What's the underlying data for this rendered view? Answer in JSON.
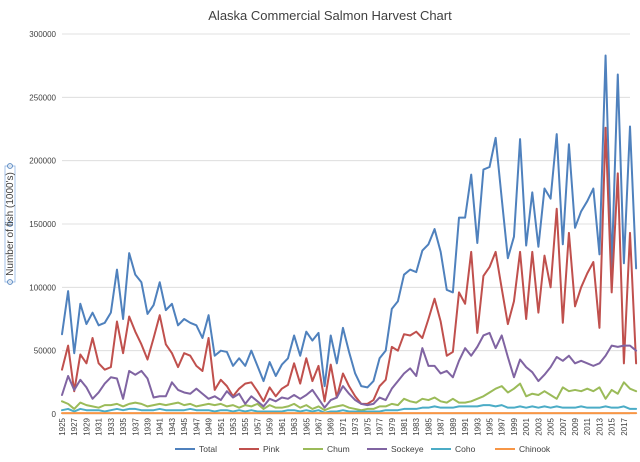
{
  "chart_data": {
    "type": "line",
    "title": "Alaska Commercial Salmon Harvest Chart",
    "xlabel": "",
    "ylabel": "Number of fish (1000's)",
    "ylim": [
      0,
      300000
    ],
    "yticks": [
      "0",
      "50000",
      "100000",
      "150000",
      "200000",
      "250000",
      "300000"
    ],
    "x_start": 1925,
    "x_end": 2018,
    "xticks": [
      "1925",
      "1927",
      "1929",
      "1931",
      "1933",
      "1935",
      "1937",
      "1939",
      "1941",
      "1943",
      "1945",
      "1947",
      "1949",
      "1951",
      "1953",
      "1955",
      "1957",
      "1959",
      "1961",
      "1963",
      "1965",
      "1967",
      "1969",
      "1971",
      "1973",
      "1975",
      "1977",
      "1979",
      "1981",
      "1983",
      "1985",
      "1987",
      "1989",
      "1991",
      "1993",
      "1995",
      "1997",
      "1999",
      "2001",
      "2003",
      "2005",
      "2007",
      "2009",
      "2011",
      "2013",
      "2015",
      "2017"
    ],
    "grid": true,
    "legend_position": "bottom",
    "series": [
      {
        "name": "Total",
        "color": "#4f81bd",
        "values": [
          63000,
          97000,
          48000,
          87000,
          71000,
          80000,
          70000,
          72000,
          80000,
          114000,
          75000,
          127000,
          110000,
          104000,
          79000,
          86000,
          104000,
          82000,
          87000,
          70000,
          75000,
          72000,
          70000,
          60000,
          78000,
          46000,
          50000,
          49000,
          38000,
          44000,
          38000,
          50000,
          38000,
          26000,
          41000,
          30000,
          39000,
          44000,
          62000,
          46000,
          65000,
          58000,
          64000,
          22000,
          62000,
          40000,
          68000,
          49000,
          32000,
          22000,
          21000,
          26000,
          44000,
          50000,
          83000,
          89000,
          110000,
          114000,
          112000,
          129000,
          134000,
          146000,
          128000,
          98000,
          96000,
          155000,
          155000,
          189000,
          135000,
          193000,
          195000,
          218000,
          170000,
          123000,
          140000,
          217000,
          133000,
          175000,
          132000,
          178000,
          170000,
          221000,
          134000,
          213000,
          147000,
          160000,
          168000,
          178000,
          126000,
          283000,
          115000,
          268000,
          119000,
          227000,
          115000
        ]
      },
      {
        "name": "Pink",
        "color": "#c0504d",
        "values": [
          35000,
          54000,
          18000,
          47000,
          40000,
          60000,
          40000,
          35000,
          37000,
          73000,
          48000,
          77000,
          65000,
          55000,
          43000,
          60000,
          78000,
          55000,
          48000,
          37000,
          48000,
          46000,
          38000,
          34000,
          60000,
          19000,
          27000,
          22000,
          14000,
          20000,
          24000,
          25000,
          18000,
          10000,
          21000,
          14000,
          20000,
          23000,
          40000,
          24000,
          44000,
          26000,
          38000,
          10000,
          39000,
          13000,
          32000,
          22000,
          14000,
          8000,
          8000,
          11000,
          22000,
          27000,
          53000,
          50000,
          63000,
          62000,
          65000,
          60000,
          75000,
          91000,
          73000,
          46000,
          49000,
          96000,
          87000,
          128000,
          64000,
          109000,
          116000,
          128000,
          99000,
          71000,
          89000,
          128000,
          75000,
          128000,
          80000,
          125000,
          100000,
          162000,
          72000,
          143000,
          85000,
          100000,
          111000,
          120000,
          68000,
          226000,
          96000,
          190000,
          40000,
          143000,
          40000
        ]
      },
      {
        "name": "Chum",
        "color": "#9bbb59",
        "values": [
          10000,
          8000,
          4000,
          9000,
          7000,
          6000,
          5000,
          7000,
          7000,
          8000,
          6000,
          8000,
          9000,
          8000,
          6000,
          7000,
          8000,
          7000,
          8000,
          9000,
          7000,
          8000,
          6000,
          7000,
          8000,
          7000,
          8000,
          6000,
          7000,
          5000,
          7000,
          6000,
          8000,
          4000,
          7000,
          5000,
          5000,
          6000,
          8000,
          5000,
          7000,
          4000,
          6000,
          3000,
          5000,
          6000,
          7000,
          5000,
          4000,
          3000,
          4000,
          4000,
          6000,
          6000,
          8000,
          7000,
          12000,
          10000,
          9000,
          12000,
          11000,
          13000,
          10000,
          9000,
          12000,
          9000,
          9000,
          10000,
          12000,
          14000,
          17000,
          20000,
          22000,
          17000,
          20000,
          24000,
          14000,
          16000,
          15000,
          18000,
          15000,
          12000,
          21000,
          18000,
          19000,
          18000,
          20000,
          18000,
          21000,
          12000,
          19000,
          16000,
          25000,
          20000,
          18000
        ]
      },
      {
        "name": "Sockeye",
        "color": "#8064a2",
        "values": [
          15000,
          30000,
          19000,
          27000,
          21000,
          12000,
          17000,
          24000,
          29000,
          28000,
          12000,
          34000,
          31000,
          34000,
          28000,
          13000,
          14000,
          14000,
          25000,
          19000,
          17000,
          16000,
          20000,
          16000,
          12000,
          14000,
          11000,
          18000,
          13000,
          16000,
          8000,
          14000,
          10000,
          6000,
          12000,
          10000,
          13000,
          12000,
          15000,
          12000,
          15000,
          19000,
          12000,
          5000,
          11000,
          13000,
          22000,
          16000,
          11000,
          8000,
          7000,
          8000,
          13000,
          11000,
          20000,
          26000,
          32000,
          36000,
          30000,
          52000,
          38000,
          38000,
          32000,
          34000,
          29000,
          42000,
          52000,
          46000,
          53000,
          62000,
          64000,
          52000,
          62000,
          45000,
          29000,
          43000,
          37000,
          33000,
          26000,
          31000,
          37000,
          45000,
          42000,
          46000,
          40000,
          42000,
          40000,
          38000,
          40000,
          46000,
          54000,
          53000,
          54000,
          54000,
          50000
        ]
      },
      {
        "name": "Coho",
        "color": "#4bacc6",
        "values": [
          3000,
          4000,
          2000,
          4000,
          3000,
          3000,
          3000,
          2000,
          3000,
          4000,
          3000,
          4000,
          4000,
          3000,
          3000,
          3000,
          4000,
          3000,
          3000,
          3000,
          3000,
          4000,
          3000,
          3000,
          3000,
          2000,
          3000,
          3000,
          2000,
          3000,
          2000,
          3000,
          2000,
          2000,
          2000,
          2000,
          2000,
          3000,
          3000,
          2000,
          3000,
          2000,
          3000,
          1000,
          2000,
          2000,
          3000,
          2000,
          2000,
          2000,
          2000,
          2000,
          2000,
          3000,
          3000,
          3000,
          4000,
          4000,
          4000,
          5000,
          5000,
          6000,
          5000,
          5000,
          5000,
          6000,
          6000,
          6000,
          6000,
          7000,
          7000,
          6000,
          7000,
          5000,
          5000,
          6000,
          5000,
          6000,
          5000,
          6000,
          5000,
          6000,
          5000,
          5000,
          5000,
          6000,
          5000,
          5000,
          5000,
          6000,
          5000,
          5000,
          6000,
          4000,
          4000
        ]
      },
      {
        "name": "Chinook",
        "color": "#f79646",
        "values": [
          700,
          700,
          700,
          700,
          700,
          700,
          700,
          700,
          700,
          700,
          700,
          700,
          700,
          700,
          700,
          700,
          700,
          700,
          700,
          700,
          700,
          700,
          700,
          700,
          700,
          700,
          700,
          700,
          700,
          700,
          700,
          700,
          700,
          700,
          700,
          700,
          700,
          700,
          700,
          700,
          700,
          700,
          700,
          700,
          700,
          700,
          700,
          700,
          700,
          700,
          700,
          700,
          700,
          700,
          700,
          700,
          700,
          700,
          700,
          700,
          700,
          700,
          700,
          700,
          700,
          700,
          700,
          700,
          700,
          700,
          700,
          700,
          700,
          700,
          700,
          700,
          700,
          700,
          700,
          700,
          700,
          700,
          700,
          700,
          700,
          700,
          700,
          700,
          700,
          700,
          700,
          700,
          700,
          700,
          700
        ]
      }
    ]
  }
}
